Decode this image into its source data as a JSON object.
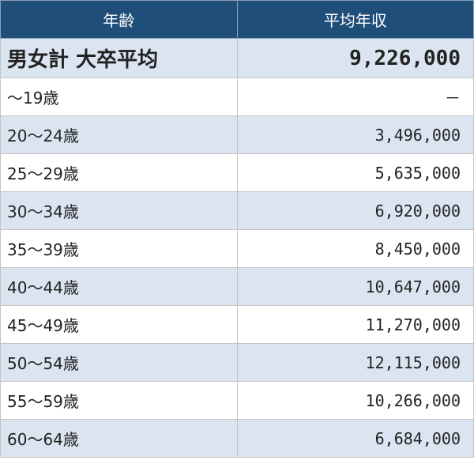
{
  "table": {
    "columns": [
      "年齢",
      "平均年収"
    ],
    "summary": [
      "男女計 大卒平均",
      "9,226,000"
    ],
    "rows": [
      [
        "～19歳",
        "－"
      ],
      [
        "20～24歳",
        "3,496,000"
      ],
      [
        "25～29歳",
        "5,635,000"
      ],
      [
        "30～34歳",
        "6,920,000"
      ],
      [
        "35～39歳",
        "8,450,000"
      ],
      [
        "40～44歳",
        "10,647,000"
      ],
      [
        "45～49歳",
        "11,270,000"
      ],
      [
        "50～54歳",
        "12,115,000"
      ],
      [
        "55～59歳",
        "10,266,000"
      ],
      [
        "60～64歳",
        "6,684,000"
      ]
    ]
  }
}
